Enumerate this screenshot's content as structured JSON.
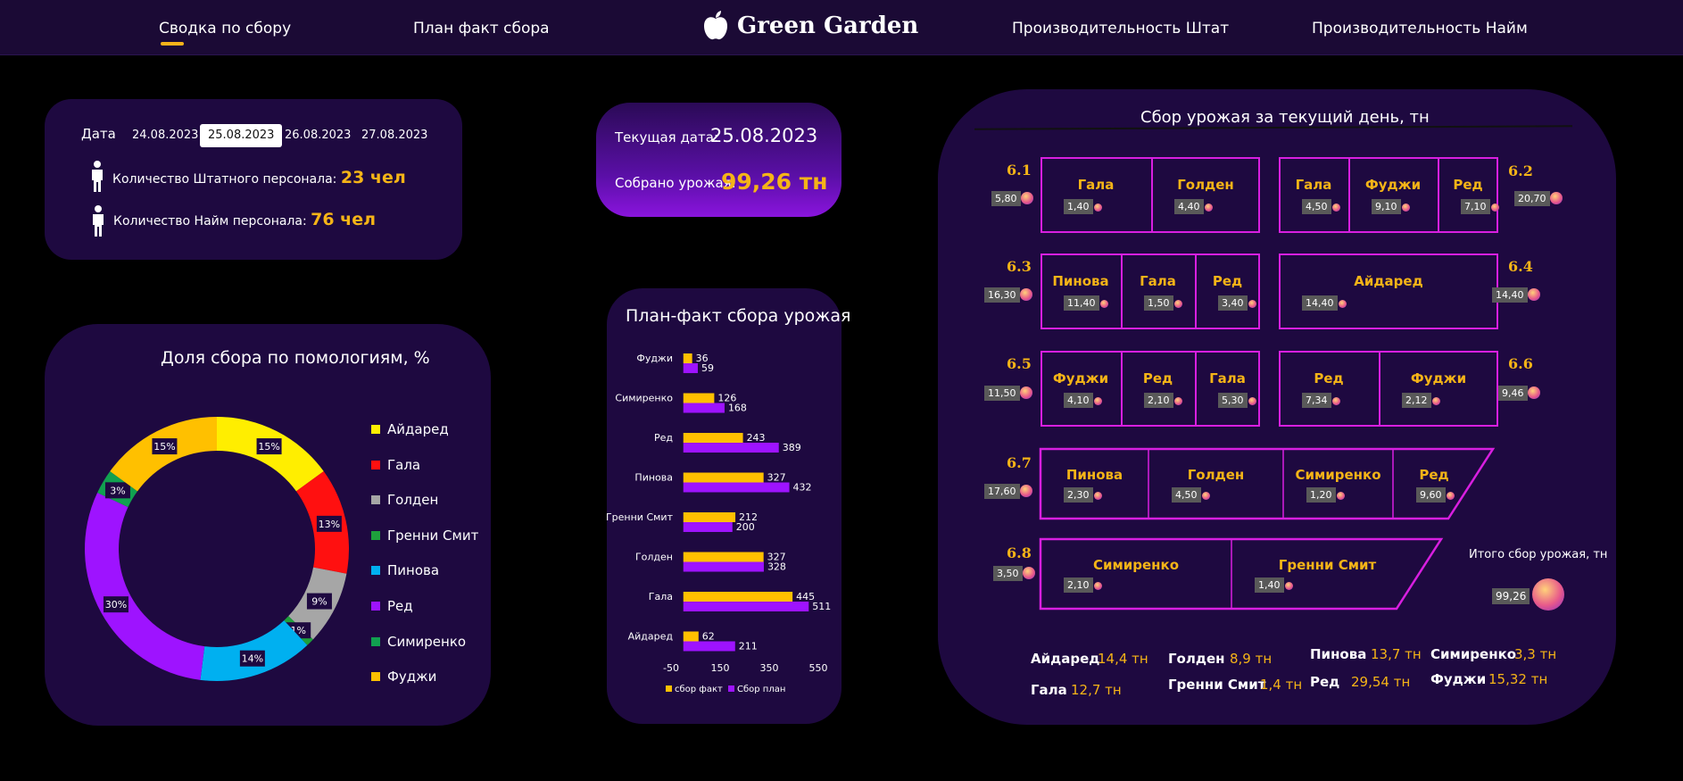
{
  "nav": {
    "items": [
      "Сводка по сбору",
      "План факт сбора",
      "Производительность Штат",
      "Производительность Найм"
    ],
    "brand": "Green Garden",
    "active_index": 0
  },
  "date_panel": {
    "label": "Дата",
    "dates": [
      "24.08.2023",
      "25.08.2023",
      "26.08.2023",
      "27.08.2023"
    ],
    "selected": "25.08.2023",
    "staff_label": "Количество Штатного персонала:",
    "staff_value": "23 чел",
    "hired_label": "Количество Найм персонала:",
    "hired_value": "76 чел"
  },
  "current": {
    "date_label": "Текущая дата:",
    "date_value": "25.08.2023",
    "harvest_label": "Собрано урожая:",
    "harvest_value": "99,26 тн"
  },
  "colors": {
    "Айдаред": "#ffee00",
    "Гала": "#ff1010",
    "Голден": "#a6a6a6",
    "Гренни Смит": "#1ea03c",
    "Пинова": "#00b0f0",
    "Ред": "#9e13ff",
    "Симиренко": "#11a050",
    "Фуджи": "#ffc000",
    "accent": "#f5b417",
    "field_border": "#d81fe0"
  },
  "chart_data": [
    {
      "type": "pie",
      "title": "Доля сбора по помологиям, %",
      "categories": [
        "Айдаред",
        "Гала",
        "Голден",
        "Гренни Смит",
        "Пинова",
        "Ред",
        "Симиренко",
        "Фуджи"
      ],
      "values": [
        15,
        13,
        9,
        1,
        14,
        30,
        3,
        15
      ],
      "labels": [
        "15%",
        "13%",
        "9%",
        "1%",
        "14%",
        "30%",
        "3%",
        "15%"
      ],
      "legend_placement": "right"
    },
    {
      "type": "bar",
      "title": "План-факт сбора урожая",
      "categories": [
        "Фуджи",
        "Симиренко",
        "Ред",
        "Пинова",
        "Гренни Смит",
        "Голден",
        "Гала",
        "Айдаред"
      ],
      "series": [
        {
          "name": "сбор факт",
          "values": [
            36,
            126,
            243,
            327,
            212,
            327,
            445,
            62
          ],
          "color": "#ffc000"
        },
        {
          "name": "Сбор план",
          "values": [
            59,
            168,
            389,
            432,
            200,
            328,
            511,
            211
          ],
          "color": "#9e13ff"
        }
      ],
      "xlim": [
        -50,
        550
      ],
      "xticks": [
        "-50",
        "150",
        "350",
        "550"
      ],
      "orientation": "horizontal",
      "legend_placement": "bottom"
    }
  ],
  "map": {
    "title": "Сбор урожая за текущий день, тн",
    "sections": [
      {
        "id": "6.1",
        "total": "5,80",
        "fields": [
          {
            "name": "Гала",
            "value": "1,40"
          },
          {
            "name": "Голден",
            "value": "4,40"
          }
        ]
      },
      {
        "id": "6.2",
        "total": "20,70",
        "fields": [
          {
            "name": "Гала",
            "value": "4,50"
          },
          {
            "name": "Фуджи",
            "value": "9,10"
          },
          {
            "name": "Ред",
            "value": "7,10"
          }
        ]
      },
      {
        "id": "6.3",
        "total": "16,30",
        "fields": [
          {
            "name": "Пинова",
            "value": "11,40"
          },
          {
            "name": "Гала",
            "value": "1,50"
          },
          {
            "name": "Ред",
            "value": "3,40"
          }
        ]
      },
      {
        "id": "6.4",
        "total": "14,40",
        "fields": [
          {
            "name": "Айдаред",
            "value": "14,40"
          }
        ]
      },
      {
        "id": "6.5",
        "total": "11,50",
        "fields": [
          {
            "name": "Фуджи",
            "value": "4,10"
          },
          {
            "name": "Ред",
            "value": "2,10"
          },
          {
            "name": "Гала",
            "value": "5,30"
          }
        ]
      },
      {
        "id": "6.6",
        "total": "9,46",
        "fields": [
          {
            "name": "Ред",
            "value": "7,34"
          },
          {
            "name": "Фуджи",
            "value": "2,12"
          }
        ]
      },
      {
        "id": "6.7",
        "total": "17,60",
        "fields": [
          {
            "name": "Пинова",
            "value": "2,30"
          },
          {
            "name": "Голден",
            "value": "4,50"
          },
          {
            "name": "Симиренко",
            "value": "1,20"
          },
          {
            "name": "Ред",
            "value": "9,60"
          }
        ]
      },
      {
        "id": "6.8",
        "total": "3,50",
        "fields": [
          {
            "name": "Симиренко",
            "value": "2,10"
          },
          {
            "name": "Гренни Смит",
            "value": "1,40"
          }
        ]
      }
    ],
    "total_label": "Итого сбор урожая, тн",
    "total_value": "99,26"
  },
  "summary": [
    {
      "name": "Айдаред",
      "value": "14,4 тн"
    },
    {
      "name": "Гала",
      "value": "12,7 тн"
    },
    {
      "name": "Голден",
      "value": "8,9 тн"
    },
    {
      "name": "Гренни Смит",
      "value": "1,4 тн"
    },
    {
      "name": "Пинова",
      "value": "13,7 тн"
    },
    {
      "name": "Ред",
      "value": "29,54 тн"
    },
    {
      "name": "Симиренко",
      "value": "3,3 тн"
    },
    {
      "name": "Фуджи",
      "value": "15,32 тн"
    }
  ]
}
